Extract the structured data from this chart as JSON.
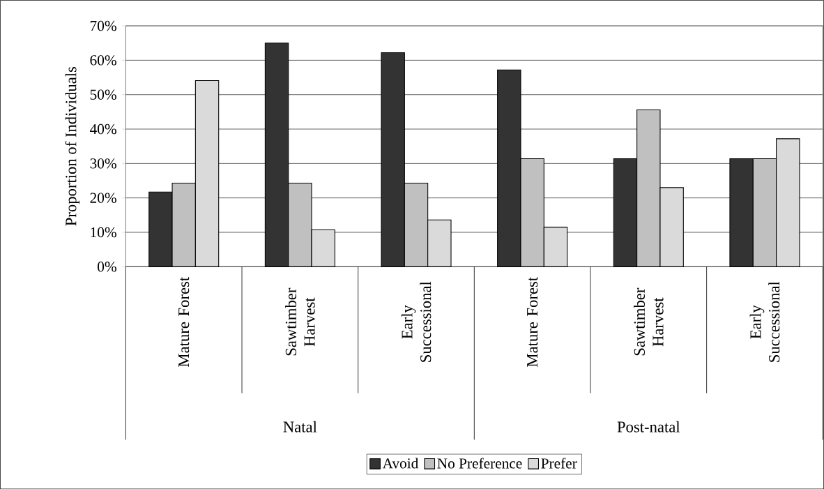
{
  "chart_data": {
    "type": "bar",
    "ylabel": "Proportion of Individuals",
    "categories": [
      "Mature Forest",
      "Sawtimber Harvest",
      "Early Successional",
      "Mature Forest",
      "Sawtimber Harvest",
      "Early Successional"
    ],
    "annotations": [
      "Natal",
      "Post-natal"
    ],
    "series": [
      {
        "name": "Avoid",
        "color": "#333333",
        "values": [
          21.7,
          65.0,
          62.2,
          57.2,
          31.4,
          31.4
        ]
      },
      {
        "name": "No Preference",
        "color": "#c0c0c0",
        "values": [
          24.3,
          24.3,
          24.3,
          31.4,
          45.6,
          31.4
        ]
      },
      {
        "name": "Prefer",
        "color": "#dadada",
        "values": [
          54.1,
          10.7,
          13.6,
          11.5,
          23.0,
          37.2
        ]
      }
    ],
    "ylim": [
      0,
      70
    ],
    "yticks": [
      {
        "value": 0,
        "label": "0%"
      },
      {
        "value": 10,
        "label": "10%"
      },
      {
        "value": 20,
        "label": "20%"
      },
      {
        "value": 30,
        "label": "30%"
      },
      {
        "value": 40,
        "label": "40%"
      },
      {
        "value": 50,
        "label": "50%"
      },
      {
        "value": 60,
        "label": "60%"
      },
      {
        "value": 70,
        "label": "70%"
      }
    ],
    "grid": "y",
    "legend": "bottom"
  }
}
